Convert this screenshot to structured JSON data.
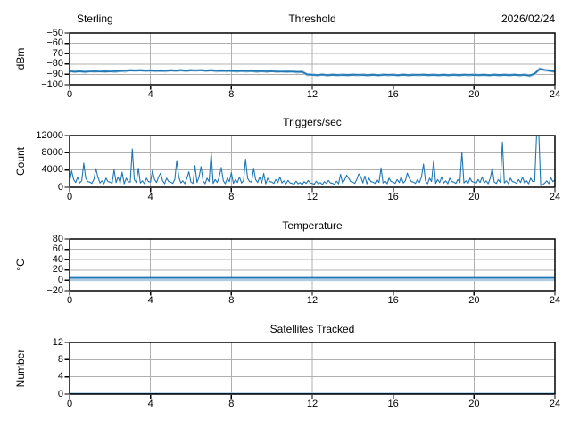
{
  "style": {
    "background": "#ffffff",
    "grid_color": "#b0b0b0",
    "spine_color": "#000000",
    "text_color": "#000000",
    "line_dark": "#1f77b4",
    "line_light": "#aecde4"
  },
  "header": {
    "left": "Sterling",
    "center": "Threshold",
    "right": "2026/02/24"
  },
  "x_axis": {
    "min": 0,
    "max": 24,
    "ticks": [
      0,
      4,
      8,
      12,
      16,
      20,
      24
    ],
    "tick_labels": [
      "0",
      "4",
      "8",
      "12",
      "16",
      "20",
      "24"
    ]
  },
  "chart_data": [
    {
      "type": "line",
      "title": "Threshold",
      "title_left": "Sterling",
      "title_right": "2026/02/24",
      "ylabel": "dBm",
      "ylim": [
        -100,
        -50
      ],
      "yticks": [
        -100,
        -90,
        -80,
        -70,
        -60,
        -50
      ],
      "ytick_labels": [
        "−100",
        "−90",
        "−80",
        "−70",
        "−60",
        "−50"
      ],
      "xlim": [
        0,
        24
      ],
      "grid": true,
      "series": [
        {
          "name": "raw",
          "role": "raw",
          "dt": 0.25,
          "values": [
            -86.5,
            -87.8,
            -86.8,
            -88.0,
            -86.8,
            -87.3,
            -86.7,
            -87.5,
            -86.7,
            -87.5,
            -86.5,
            -87.1,
            -85.9,
            -86.5,
            -85.8,
            -86.7,
            -86.0,
            -86.9,
            -86.3,
            -86.9,
            -85.9,
            -86.8,
            -85.8,
            -86.9,
            -85.8,
            -86.3,
            -85.6,
            -86.8,
            -85.8,
            -87.0,
            -86.3,
            -86.9,
            -86.2,
            -87.2,
            -86.4,
            -87.1,
            -86.4,
            -87.5,
            -86.6,
            -87.5,
            -86.5,
            -87.7,
            -86.9,
            -87.6,
            -86.9,
            -88.1,
            -87.2,
            -90.5,
            -89.9,
            -91.0,
            -89.9,
            -91.1,
            -90.0,
            -90.9,
            -90.1,
            -90.9,
            -90.0,
            -90.8,
            -90.1,
            -91.0,
            -90.0,
            -91.1,
            -90.0,
            -90.8,
            -90.1,
            -91.1,
            -89.9,
            -91.0,
            -90.1,
            -90.8,
            -90.0,
            -90.9,
            -90.1,
            -91.0,
            -90.1,
            -91.0,
            -89.9,
            -91.0,
            -90.1,
            -90.9,
            -90.0,
            -90.8,
            -90.2,
            -91.1,
            -90.0,
            -91.0,
            -90.1,
            -90.9,
            -90.0,
            -91.1,
            -90.0,
            -91.4,
            -89.6,
            -84.4,
            -86.1,
            -86.2,
            -87.5
          ]
        },
        {
          "name": "average",
          "role": "main",
          "dt": 0.25,
          "values": [
            -87.0,
            -87.3,
            -87.1,
            -87.4,
            -87.2,
            -87.0,
            -87.3,
            -87.1,
            -87.2,
            -87.0,
            -86.8,
            -86.5,
            -86.3,
            -86.2,
            -86.4,
            -86.3,
            -86.5,
            -86.4,
            -86.6,
            -86.5,
            -86.4,
            -86.3,
            -86.1,
            -86.3,
            -86.2,
            -86.0,
            -86.2,
            -86.4,
            -86.3,
            -86.5,
            -86.6,
            -86.5,
            -86.7,
            -86.6,
            -86.8,
            -86.7,
            -86.9,
            -87.0,
            -86.9,
            -87.1,
            -87.0,
            -87.2,
            -87.3,
            -87.2,
            -87.4,
            -87.5,
            -87.6,
            -90.0,
            -90.4,
            -90.5,
            -90.3,
            -90.6,
            -90.4,
            -90.5,
            -90.6,
            -90.4,
            -90.5,
            -90.3,
            -90.6,
            -90.5,
            -90.4,
            -90.6,
            -90.5,
            -90.3,
            -90.5,
            -90.6,
            -90.4,
            -90.5,
            -90.6,
            -90.3,
            -90.5,
            -90.4,
            -90.6,
            -90.5,
            -90.4,
            -90.5,
            -90.6,
            -90.4,
            -90.5,
            -90.3,
            -90.6,
            -90.5,
            -90.4,
            -90.6,
            -90.5,
            -90.4,
            -90.5,
            -90.6,
            -90.4,
            -90.5,
            -90.5,
            -91.0,
            -89.2,
            -84.8,
            -85.6,
            -86.6,
            -87.1
          ]
        }
      ]
    },
    {
      "type": "line",
      "title": "Triggers/sec",
      "ylabel": "Count",
      "ylim": [
        0,
        12000
      ],
      "yticks": [
        0,
        4000,
        8000,
        12000
      ],
      "ytick_labels": [
        "0",
        "4000",
        "8000",
        "12000"
      ],
      "xlim": [
        0,
        24
      ],
      "grid": true,
      "series": [
        {
          "name": "count",
          "role": "main",
          "dt": 0.1,
          "values": [
            1200,
            3800,
            1800,
            1100,
            2400,
            1000,
            1500,
            5600,
            2100,
            1300,
            1200,
            900,
            1800,
            4300,
            2400,
            1000,
            1500,
            800,
            2100,
            1300,
            1200,
            900,
            4100,
            1100,
            2400,
            1000,
            3500,
            800,
            2100,
            1300,
            1200,
            8900,
            1800,
            1100,
            4400,
            1000,
            1500,
            800,
            2100,
            1300,
            1200,
            3900,
            1800,
            1100,
            2400,
            3300,
            1500,
            800,
            2100,
            1300,
            1200,
            900,
            1800,
            6200,
            2400,
            1000,
            1500,
            800,
            2100,
            3600,
            1200,
            900,
            5000,
            1100,
            2400,
            4800,
            1500,
            800,
            2100,
            1300,
            8000,
            900,
            1800,
            1100,
            2400,
            4600,
            1500,
            800,
            2100,
            1300,
            3400,
            900,
            1800,
            1100,
            2400,
            1000,
            1500,
            6500,
            2100,
            1300,
            1200,
            4400,
            1800,
            1100,
            2400,
            1000,
            3200,
            800,
            2100,
            1300,
            1200,
            900,
            1800,
            1100,
            2400,
            1000,
            1500,
            800,
            1600,
            1000,
            900,
            700,
            1400,
            800,
            1100,
            600,
            1300,
            900,
            1600,
            1000,
            900,
            700,
            1400,
            800,
            1100,
            600,
            1300,
            900,
            1600,
            1000,
            900,
            700,
            1400,
            800,
            3000,
            1000,
            1700,
            2800,
            2100,
            1300,
            1200,
            900,
            1800,
            3100,
            2400,
            1000,
            2600,
            800,
            2100,
            1300,
            1200,
            900,
            1800,
            1100,
            4500,
            1000,
            1500,
            800,
            2100,
            1300,
            1200,
            900,
            1800,
            1100,
            2400,
            1000,
            1500,
            3300,
            2100,
            1300,
            1200,
            900,
            1800,
            1100,
            2400,
            5400,
            1500,
            800,
            2100,
            1300,
            6200,
            900,
            1800,
            1100,
            2400,
            1000,
            1500,
            800,
            2100,
            1300,
            1200,
            900,
            1800,
            1100,
            8200,
            1000,
            1500,
            800,
            2100,
            1300,
            1200,
            900,
            1800,
            1100,
            2400,
            1000,
            1500,
            800,
            2100,
            4400,
            1200,
            900,
            1800,
            1100,
            10500,
            1000,
            1500,
            800,
            2100,
            1300,
            1200,
            900,
            1800,
            1100,
            2400,
            1000,
            1500,
            800,
            2100,
            1300,
            1400,
            13000,
            12600,
            400,
            600,
            1000,
            1500,
            800,
            2200,
            1300,
            1700
          ]
        }
      ]
    },
    {
      "type": "line",
      "title": "Temperature",
      "ylabel": "°C",
      "ylim": [
        -20,
        80
      ],
      "yticks": [
        -20,
        0,
        20,
        40,
        60,
        80
      ],
      "ytick_labels": [
        "−20",
        "0",
        "20",
        "40",
        "60",
        "80"
      ],
      "xlim": [
        0,
        24
      ],
      "grid": true,
      "series": [
        {
          "name": "raw",
          "role": "raw",
          "dt": 24,
          "values": [
            1.0,
            1.0
          ]
        },
        {
          "name": "average",
          "role": "main",
          "dt": 24,
          "values": [
            5.0,
            5.0
          ]
        }
      ]
    },
    {
      "type": "line",
      "title": "Satellites Tracked",
      "ylabel": "Number",
      "ylim": [
        0,
        12
      ],
      "yticks": [
        0,
        4,
        8,
        12
      ],
      "ytick_labels": [
        "0",
        "4",
        "8",
        "12"
      ],
      "xlim": [
        0,
        24
      ],
      "grid": true,
      "series": [
        {
          "name": "raw",
          "role": "raw",
          "dt": 24,
          "values": [
            0.1,
            0.1
          ]
        },
        {
          "name": "tracked",
          "role": "main",
          "dt": 24,
          "values": [
            0.05,
            0.05
          ]
        }
      ]
    }
  ]
}
